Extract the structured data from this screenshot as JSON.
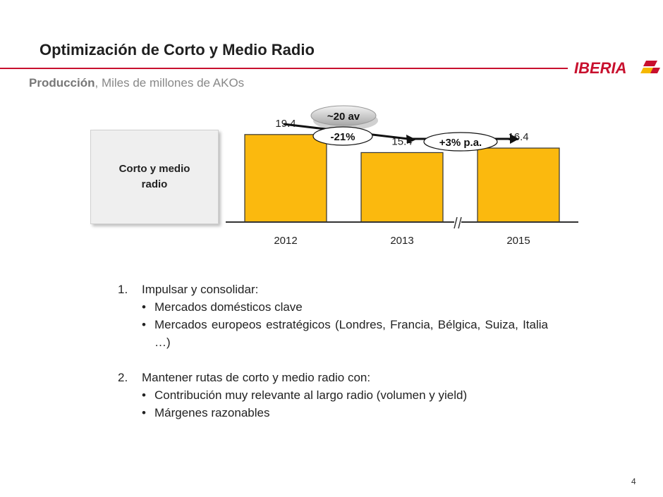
{
  "header": {
    "title": "Optimización de Corto y Medio Radio",
    "subtitle_bold": "Producción",
    "subtitle_rest": ", Miles de millones de AKOs",
    "logo_text": "IBERIA",
    "brand_red": "#c8102e",
    "brand_yellow": "#f5b800"
  },
  "side_box": {
    "label": "Corto y medio radio"
  },
  "chart_data": {
    "type": "bar",
    "categories": [
      "2012",
      "2013",
      "2015"
    ],
    "values": [
      19.4,
      15.4,
      16.4
    ],
    "data_labels": [
      "19.4",
      "15.4",
      "16.4"
    ],
    "title": "",
    "xlabel": "",
    "ylabel": "",
    "ylim": [
      0,
      25
    ],
    "bar_color": "#fbb90e",
    "axis_break": "//",
    "annotations": {
      "pill_label": "~20 av",
      "decline_label": "-21%",
      "growth_label": "+3% p.a."
    },
    "grid": false,
    "legend": "none"
  },
  "bullets": {
    "item1": {
      "num": "1.",
      "text": "Impulsar y consolidar:",
      "subs": [
        "Mercados domésticos clave",
        "Mercados europeos estratégicos (Londres, Francia, Bélgica, Suiza, Italia …)"
      ]
    },
    "item2": {
      "num": "2.",
      "text": "Mantener rutas de corto y medio radio con:",
      "subs": [
        "Contribución muy relevante al largo radio (volumen y yield)",
        "Márgenes razonables"
      ]
    },
    "bullet_char": "•"
  },
  "page_number": "4"
}
